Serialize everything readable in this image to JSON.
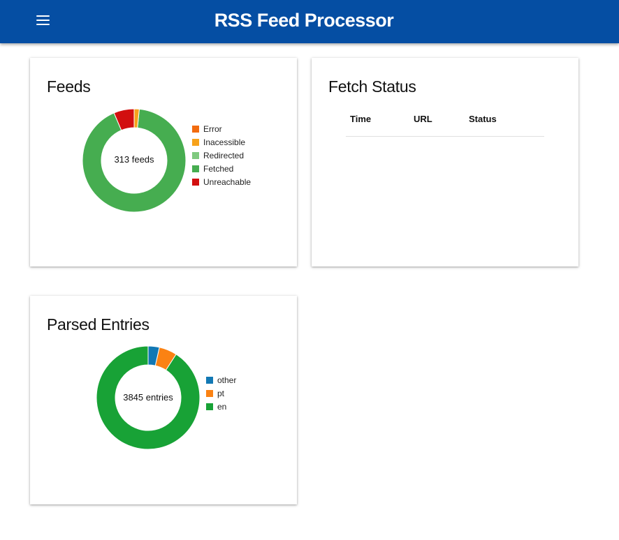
{
  "header": {
    "title": "RSS Feed Processor",
    "menu_icon": "menu-icon"
  },
  "colors": {
    "appbar": "#054ea3",
    "feeds": {
      "Error": "#f26b0f",
      "Inacessible": "#f7a21b",
      "Redirected": "#7fc97f",
      "Fetched": "#46ad50",
      "Unreachable": "#d20f0f"
    },
    "entries": {
      "other": "#1278b4",
      "pt": "#fb8213",
      "en": "#18a236"
    }
  },
  "feeds_card": {
    "title": "Feeds",
    "center_label": "313 feeds",
    "legend": [
      "Error",
      "Inacessible",
      "Redirected",
      "Fetched",
      "Unreachable"
    ]
  },
  "fetch_status_card": {
    "title": "Fetch Status",
    "columns": [
      "Time",
      "URL",
      "Status"
    ]
  },
  "entries_card": {
    "title": "Parsed Entries",
    "center_label": "3845 entries",
    "legend": [
      "other",
      "pt",
      "en"
    ]
  },
  "chart_data": [
    {
      "type": "pie",
      "title": "Feeds",
      "center_label": "313 feeds",
      "categories": [
        "Error",
        "Inacessible",
        "Redirected",
        "Fetched",
        "Unreachable"
      ],
      "values": [
        0,
        5,
        0,
        288,
        20
      ],
      "legend_position": "right"
    },
    {
      "type": "pie",
      "title": "Parsed Entries",
      "center_label": "3845 entries",
      "categories": [
        "other",
        "pt",
        "en"
      ],
      "values": [
        135,
        215,
        3495
      ],
      "legend_position": "right"
    }
  ]
}
